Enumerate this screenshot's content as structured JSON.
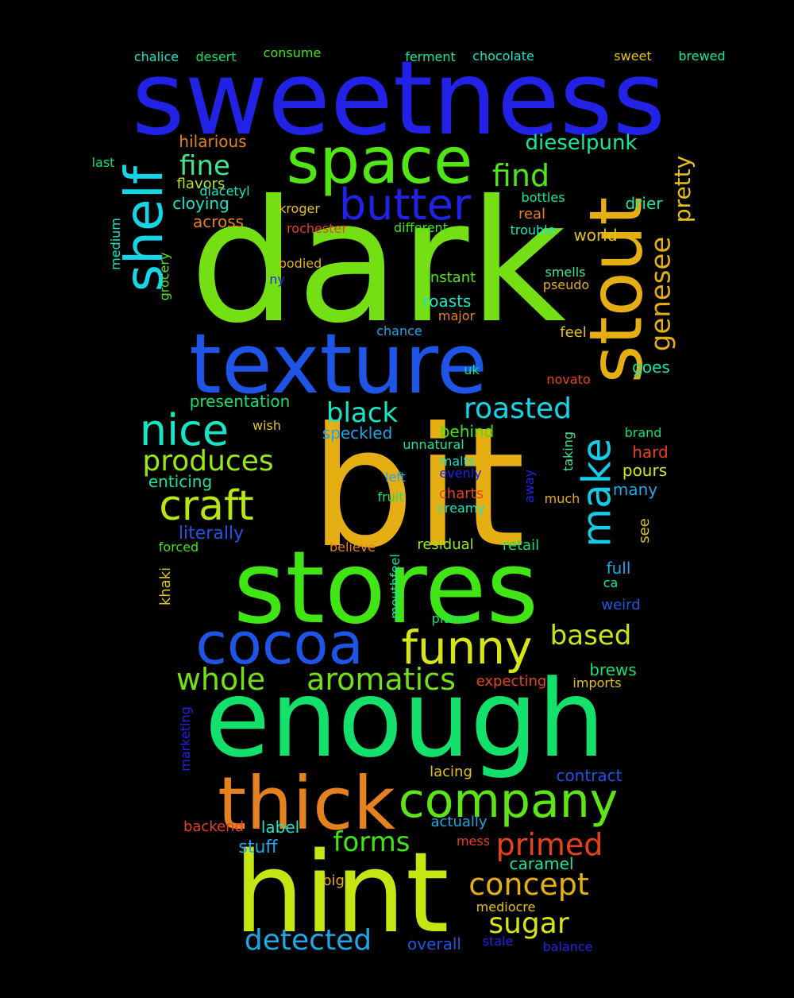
{
  "background": "#000000",
  "words": [
    {
      "text": "sweetness",
      "color": "#2222E6"
    },
    {
      "text": "dark",
      "color": "#74E014"
    },
    {
      "text": "bit",
      "color": "#E5AE12"
    },
    {
      "text": "enough",
      "color": "#14E06C"
    },
    {
      "text": "stores",
      "color": "#3FE614"
    },
    {
      "text": "hint",
      "color": "#C6E614"
    },
    {
      "text": "texture",
      "color": "#1E55E6"
    },
    {
      "text": "stout",
      "color": "#E5AE12"
    },
    {
      "text": "space",
      "color": "#4FE614"
    },
    {
      "text": "cocoa",
      "color": "#1E55E6"
    },
    {
      "text": "thick",
      "color": "#E6821E"
    },
    {
      "text": "shelf",
      "color": "#14D6E6"
    },
    {
      "text": "company",
      "color": "#5EE614"
    },
    {
      "text": "butter",
      "color": "#2222E6"
    },
    {
      "text": "funny",
      "color": "#D6E614"
    },
    {
      "text": "craft",
      "color": "#B6E614"
    },
    {
      "text": "nice",
      "color": "#14E6C6"
    },
    {
      "text": "make",
      "color": "#14CCE6"
    },
    {
      "text": "primed",
      "color": "#E6421E"
    },
    {
      "text": "concept",
      "color": "#E5AE12"
    },
    {
      "text": "produces",
      "color": "#9AE614"
    },
    {
      "text": "aromatics",
      "color": "#74E014"
    },
    {
      "text": "whole",
      "color": "#74E014"
    },
    {
      "text": "find",
      "color": "#4FE614"
    },
    {
      "text": "roasted",
      "color": "#14D6E6"
    },
    {
      "text": "detected",
      "color": "#1EA6E6"
    },
    {
      "text": "sugar",
      "color": "#D6E614"
    },
    {
      "text": "black",
      "color": "#14E6C6"
    },
    {
      "text": "forms",
      "color": "#3FE614"
    },
    {
      "text": "based",
      "color": "#C6E614"
    },
    {
      "text": "fine",
      "color": "#3FE68C"
    },
    {
      "text": "genesee",
      "color": "#E5AE12"
    },
    {
      "text": "pretty",
      "color": "#E5C212"
    },
    {
      "text": "dieselpunk",
      "color": "#14E6A0"
    },
    {
      "text": "chalice",
      "color": "#14E6C6"
    },
    {
      "text": "desert",
      "color": "#14E06C"
    },
    {
      "text": "consume",
      "color": "#3FE614"
    },
    {
      "text": "ferment",
      "color": "#14E6A0"
    },
    {
      "text": "chocolate",
      "color": "#14E6C6"
    },
    {
      "text": "sweet",
      "color": "#E5C212"
    },
    {
      "text": "brewed",
      "color": "#14E6A0"
    },
    {
      "text": "hilarious",
      "color": "#E6821E"
    },
    {
      "text": "last",
      "color": "#14E06C"
    },
    {
      "text": "flavors",
      "color": "#B6E614"
    },
    {
      "text": "diacetyl",
      "color": "#14E6C6"
    },
    {
      "text": "bottles",
      "color": "#14E6A0"
    },
    {
      "text": "cloying",
      "color": "#14E6C6"
    },
    {
      "text": "kroger",
      "color": "#E5C212"
    },
    {
      "text": "real",
      "color": "#E6821E"
    },
    {
      "text": "drier",
      "color": "#14E6A0"
    },
    {
      "text": "across",
      "color": "#E6821E"
    },
    {
      "text": "rochester",
      "color": "#E6421E"
    },
    {
      "text": "different",
      "color": "#3FE614"
    },
    {
      "text": "trouble",
      "color": "#14E6C6"
    },
    {
      "text": "world",
      "color": "#E5C212"
    },
    {
      "text": "medium",
      "color": "#14E6C6"
    },
    {
      "text": "bodied",
      "color": "#E5AE12"
    },
    {
      "text": "ny",
      "color": "#2222E6"
    },
    {
      "text": "smells",
      "color": "#3FE68C"
    },
    {
      "text": "instant",
      "color": "#4FE614"
    },
    {
      "text": "pseudo",
      "color": "#E5AE12"
    },
    {
      "text": "grocery",
      "color": "#4FE614"
    },
    {
      "text": "roasts",
      "color": "#14E6C6"
    },
    {
      "text": "major",
      "color": "#E6821E"
    },
    {
      "text": "chance",
      "color": "#1EA6E6"
    },
    {
      "text": "feel",
      "color": "#E5C212"
    },
    {
      "text": "uk",
      "color": "#14E06C"
    },
    {
      "text": "goes",
      "color": "#14E6A0"
    },
    {
      "text": "novato",
      "color": "#E6421E"
    },
    {
      "text": "presentation",
      "color": "#14E06C"
    },
    {
      "text": "wish",
      "color": "#E5C212"
    },
    {
      "text": "speckled",
      "color": "#1EA6E6"
    },
    {
      "text": "behind",
      "color": "#3FE614"
    },
    {
      "text": "unnatural",
      "color": "#14E6A0"
    },
    {
      "text": "brand",
      "color": "#14E06C"
    },
    {
      "text": "taking",
      "color": "#3FE68C"
    },
    {
      "text": "hard",
      "color": "#E6421E"
    },
    {
      "text": "enticing",
      "color": "#14E6A0"
    },
    {
      "text": "malts",
      "color": "#14E6C6"
    },
    {
      "text": "evenly",
      "color": "#2222E6"
    },
    {
      "text": "pours",
      "color": "#D6E614"
    },
    {
      "text": "left",
      "color": "#1EA6E6"
    },
    {
      "text": "charts",
      "color": "#E6421E"
    },
    {
      "text": "away",
      "color": "#2222E6"
    },
    {
      "text": "many",
      "color": "#1EA6E6"
    },
    {
      "text": "fruit",
      "color": "#14E06C"
    },
    {
      "text": "creamy",
      "color": "#14E6C6"
    },
    {
      "text": "much",
      "color": "#E5AE12"
    },
    {
      "text": "literally",
      "color": "#1E55E6"
    },
    {
      "text": "forced",
      "color": "#3FE614"
    },
    {
      "text": "believe",
      "color": "#E6821E"
    },
    {
      "text": "residual",
      "color": "#9AE614"
    },
    {
      "text": "retail",
      "color": "#14E06C"
    },
    {
      "text": "see",
      "color": "#E5C212"
    },
    {
      "text": "khaki",
      "color": "#E5C212"
    },
    {
      "text": "mouthfeel",
      "color": "#14E6A0"
    },
    {
      "text": "full",
      "color": "#1EA6E6"
    },
    {
      "text": "ca",
      "color": "#14E6A0"
    },
    {
      "text": "weird",
      "color": "#1E55E6"
    },
    {
      "text": "plums",
      "color": "#14E06C"
    },
    {
      "text": "brews",
      "color": "#14E06C"
    },
    {
      "text": "expecting",
      "color": "#E6421E"
    },
    {
      "text": "imports",
      "color": "#E5C212"
    },
    {
      "text": "marketing",
      "color": "#2222E6"
    },
    {
      "text": "lacing",
      "color": "#E5C212"
    },
    {
      "text": "contract",
      "color": "#1E55E6"
    },
    {
      "text": "label",
      "color": "#14E6C6"
    },
    {
      "text": "actually",
      "color": "#1EA6E6"
    },
    {
      "text": "backend",
      "color": "#E6421E"
    },
    {
      "text": "mess",
      "color": "#E6421E"
    },
    {
      "text": "stuff",
      "color": "#1EA6E6"
    },
    {
      "text": "caramel",
      "color": "#14E6A0"
    },
    {
      "text": "big",
      "color": "#E5AE12"
    },
    {
      "text": "mediocre",
      "color": "#E5C212"
    },
    {
      "text": "overall",
      "color": "#1E55E6"
    },
    {
      "text": "stale",
      "color": "#2222E6"
    },
    {
      "text": "balance",
      "color": "#2222E6"
    }
  ]
}
